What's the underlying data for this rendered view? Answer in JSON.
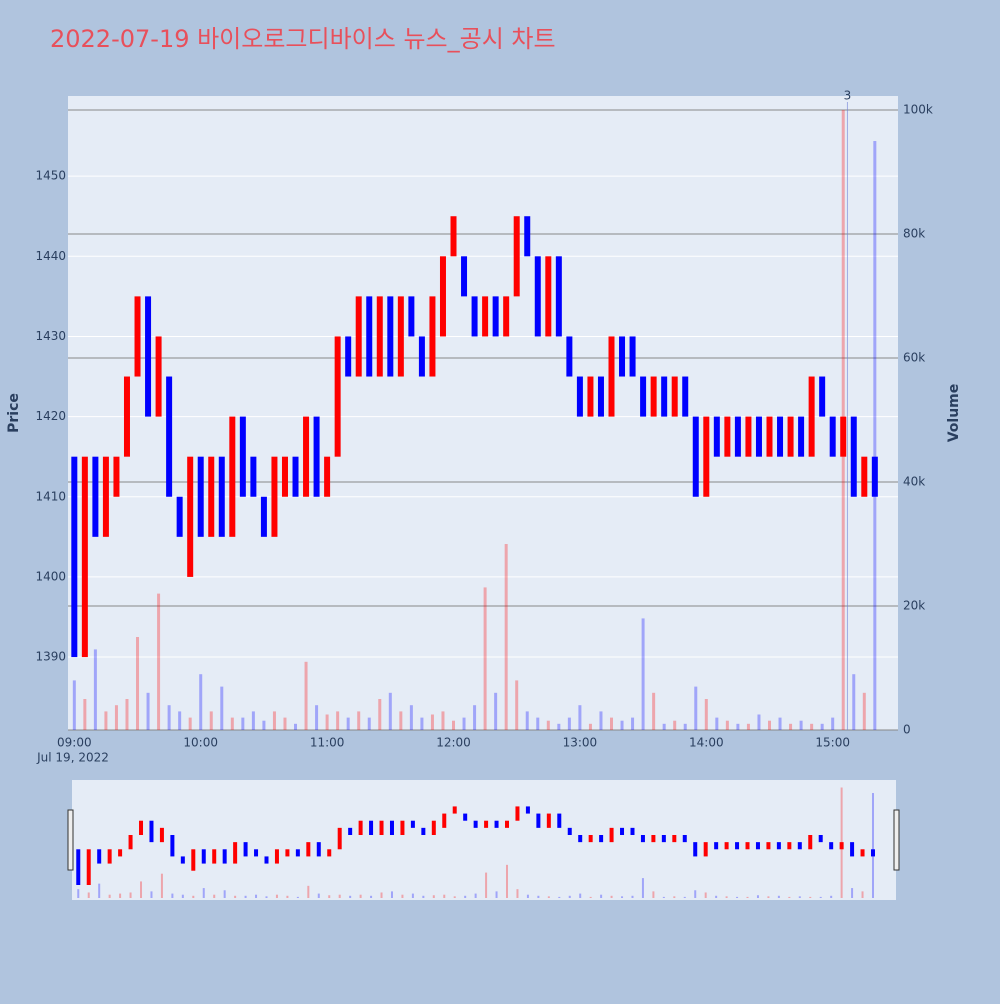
{
  "chart_data": {
    "type": "candlestick",
    "title": "2022-07-19 바이오로그디바이스 뉴스_공시 차트",
    "y_label": "Price",
    "y2_label": "Volume",
    "x_date_label": "Jul 19, 2022",
    "increasing_color": "#ff0000",
    "decreasing_color": "#0000ff",
    "x": [
      "09:00",
      "09:05",
      "09:10",
      "09:15",
      "09:20",
      "09:25",
      "09:30",
      "09:35",
      "09:40",
      "09:45",
      "09:50",
      "09:55",
      "10:00",
      "10:05",
      "10:10",
      "10:15",
      "10:20",
      "10:25",
      "10:30",
      "10:35",
      "10:40",
      "10:45",
      "10:50",
      "10:55",
      "11:00",
      "11:05",
      "11:10",
      "11:15",
      "11:20",
      "11:25",
      "11:30",
      "11:35",
      "11:40",
      "11:45",
      "11:50",
      "11:55",
      "12:00",
      "12:05",
      "12:10",
      "12:15",
      "12:20",
      "12:25",
      "12:30",
      "12:35",
      "12:40",
      "12:45",
      "12:50",
      "12:55",
      "13:00",
      "13:05",
      "13:10",
      "13:15",
      "13:20",
      "13:25",
      "13:30",
      "13:35",
      "13:40",
      "13:45",
      "13:50",
      "13:55",
      "14:00",
      "14:05",
      "14:10",
      "14:15",
      "14:20",
      "14:25",
      "14:30",
      "14:35",
      "14:40",
      "14:45",
      "14:50",
      "14:55",
      "15:00",
      "15:05",
      "15:10",
      "15:15",
      "15:20"
    ],
    "open": [
      1415,
      1390,
      1415,
      1405,
      1410,
      1415,
      1425,
      1435,
      1420,
      1425,
      1410,
      1400,
      1415,
      1405,
      1415,
      1405,
      1420,
      1415,
      1410,
      1405,
      1410,
      1415,
      1410,
      1420,
      1410,
      1415,
      1430,
      1425,
      1435,
      1425,
      1435,
      1425,
      1435,
      1430,
      1425,
      1430,
      1440,
      1440,
      1435,
      1430,
      1435,
      1430,
      1435,
      1445,
      1440,
      1430,
      1440,
      1430,
      1425,
      1420,
      1425,
      1420,
      1430,
      1430,
      1425,
      1420,
      1425,
      1420,
      1425,
      1420,
      1410,
      1420,
      1415,
      1420,
      1415,
      1420,
      1415,
      1420,
      1415,
      1420,
      1415,
      1425,
      1420,
      1415,
      1420,
      1410,
      1415
    ],
    "close": [
      1390,
      1415,
      1405,
      1415,
      1415,
      1425,
      1435,
      1420,
      1430,
      1410,
      1405,
      1415,
      1405,
      1415,
      1405,
      1420,
      1410,
      1410,
      1405,
      1415,
      1415,
      1410,
      1420,
      1410,
      1415,
      1430,
      1425,
      1435,
      1425,
      1435,
      1425,
      1435,
      1430,
      1425,
      1435,
      1440,
      1445,
      1435,
      1430,
      1435,
      1430,
      1435,
      1445,
      1440,
      1430,
      1440,
      1430,
      1425,
      1420,
      1425,
      1420,
      1430,
      1425,
      1425,
      1420,
      1425,
      1420,
      1425,
      1420,
      1410,
      1420,
      1415,
      1420,
      1415,
      1420,
      1415,
      1420,
      1415,
      1420,
      1415,
      1425,
      1420,
      1415,
      1420,
      1410,
      1415,
      1410
    ],
    "volume": [
      8000,
      5000,
      13000,
      3000,
      4000,
      5000,
      15000,
      6000,
      22000,
      4000,
      3000,
      2000,
      9000,
      3000,
      7000,
      2000,
      2000,
      3000,
      1500,
      3000,
      2000,
      1000,
      11000,
      4000,
      2500,
      3000,
      2000,
      3000,
      2000,
      5000,
      6000,
      3000,
      4000,
      2000,
      2500,
      3000,
      1500,
      2000,
      4000,
      23000,
      6000,
      30000,
      8000,
      3000,
      2000,
      1500,
      1000,
      2000,
      4000,
      1000,
      3000,
      2000,
      1500,
      2000,
      18000,
      6000,
      1000,
      1500,
      1000,
      7000,
      5000,
      2000,
      1500,
      1000,
      1000,
      2500,
      1500,
      2000,
      1000,
      1500,
      1000,
      1000,
      2000,
      100000,
      9000,
      6000,
      95000
    ],
    "xlim": [
      "08:57",
      "15:31"
    ],
    "ylim": [
      1380.9,
      1460
    ],
    "y2lim": [
      0,
      102262
    ],
    "xticks": [
      "09:00",
      "10:00",
      "11:00",
      "12:00",
      "13:00",
      "14:00",
      "15:00"
    ],
    "yticks": [
      1390,
      1400,
      1410,
      1420,
      1430,
      1440,
      1450
    ],
    "y2ticks": [
      0,
      {
        "value": 20000,
        "label": "20k"
      },
      {
        "value": 40000,
        "label": "40k"
      },
      {
        "value": 60000,
        "label": "60k"
      },
      {
        "value": 80000,
        "label": "80k"
      },
      {
        "value": 100000,
        "label": "100k"
      }
    ],
    "annotations": [
      {
        "x": "15:07",
        "text": "3"
      }
    ],
    "grid": true
  }
}
